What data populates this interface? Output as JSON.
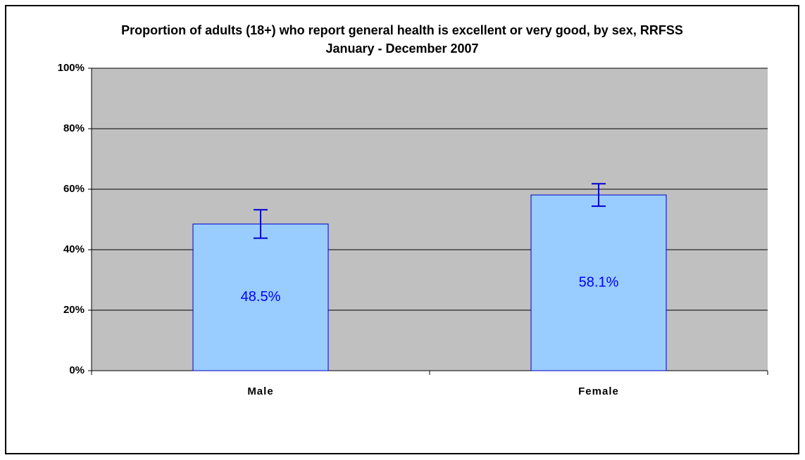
{
  "chart_data": {
    "type": "bar",
    "title": "Proportion of adults (18+) who report general health is excellent or very good, by sex, RRFSS January - December 2007",
    "categories": [
      "Male",
      "Female"
    ],
    "values": [
      48.5,
      58.1
    ],
    "value_labels": [
      "48.5%",
      "58.1%"
    ],
    "errors": [
      4.7,
      3.7
    ],
    "color": "#99ccff",
    "ylim": [
      0,
      100
    ],
    "yticks": [
      {
        "value": 0,
        "label": "0%"
      },
      {
        "value": 20,
        "label": "20%"
      },
      {
        "value": 40,
        "label": "40%"
      },
      {
        "value": 60,
        "label": "60%"
      },
      {
        "value": 80,
        "label": "80%"
      },
      {
        "value": 100,
        "label": "100%"
      }
    ],
    "grid": true
  }
}
